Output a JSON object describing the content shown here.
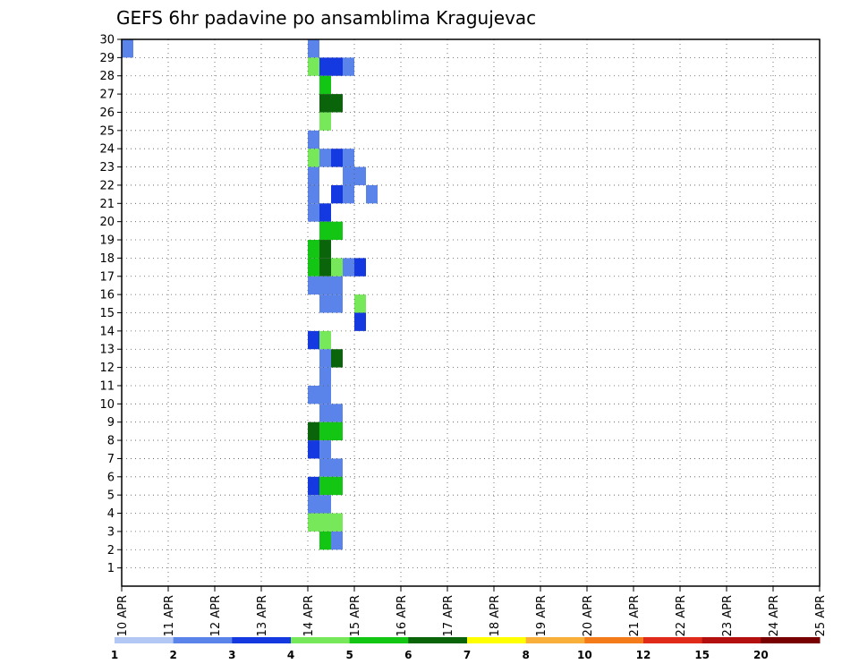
{
  "chart_data": {
    "type": "heatmap",
    "title": "GEFS 6hr padavine po ansamblima Kragujevac",
    "xlabel": "",
    "ylabel": "",
    "x_start": "10 APR",
    "x_end": "25 APR",
    "x_step_hours": 6,
    "x_ticks": [
      "10 APR",
      "11 APR",
      "12 APR",
      "13 APR",
      "14 APR",
      "15 APR",
      "16 APR",
      "17 APR",
      "18 APR",
      "19 APR",
      "20 APR",
      "21 APR",
      "22 APR",
      "23 APR",
      "24 APR",
      "25 APR"
    ],
    "y_ticks": [
      "1",
      "2",
      "3",
      "4",
      "5",
      "6",
      "7",
      "8",
      "9",
      "10",
      "11",
      "12",
      "13",
      "14",
      "15",
      "16",
      "17",
      "18",
      "19",
      "20",
      "21",
      "22",
      "23",
      "24",
      "25",
      "26",
      "27",
      "28",
      "29",
      "30"
    ],
    "ylim": [
      0,
      30
    ],
    "grid": true,
    "legend": {
      "placement": "bottom",
      "colors": [
        "#b3c7f5",
        "#5a84ea",
        "#1539e0",
        "#76e85a",
        "#13c613",
        "#0a640a",
        "#ffff00",
        "#f9b03a",
        "#f47b1a",
        "#e02a1a",
        "#b51010",
        "#780000"
      ],
      "labels": [
        "1",
        "2",
        "3",
        "4",
        "5",
        "6",
        "7",
        "8",
        "10",
        "12",
        "15",
        "20"
      ]
    },
    "cells": [
      [
        "10 APR 00Z",
        30,
        1
      ],
      [
        "14 APR 00Z",
        30,
        1
      ],
      [
        "14 APR 00Z",
        29,
        3
      ],
      [
        "14 APR 06Z",
        29,
        2
      ],
      [
        "14 APR 12Z",
        29,
        2
      ],
      [
        "14 APR 18Z",
        29,
        1
      ],
      [
        "14 APR 06Z",
        28,
        4
      ],
      [
        "14 APR 06Z",
        27,
        5
      ],
      [
        "14 APR 12Z",
        27,
        5
      ],
      [
        "14 APR 06Z",
        26,
        3
      ],
      [
        "14 APR 00Z",
        25,
        1
      ],
      [
        "14 APR 00Z",
        24,
        3
      ],
      [
        "14 APR 06Z",
        24,
        1
      ],
      [
        "14 APR 12Z",
        24,
        2
      ],
      [
        "14 APR 18Z",
        24,
        1
      ],
      [
        "14 APR 00Z",
        23,
        1
      ],
      [
        "14 APR 18Z",
        23,
        1
      ],
      [
        "15 APR 00Z",
        23,
        1
      ],
      [
        "14 APR 12Z",
        22,
        2
      ],
      [
        "14 APR 18Z",
        22,
        1
      ],
      [
        "14 APR 00Z",
        22,
        1
      ],
      [
        "15 APR 06Z",
        22,
        1
      ],
      [
        "14 APR 00Z",
        21,
        1
      ],
      [
        "14 APR 06Z",
        21,
        2
      ],
      [
        "14 APR 06Z",
        20,
        4
      ],
      [
        "14 APR 12Z",
        20,
        4
      ],
      [
        "14 APR 00Z",
        19,
        4
      ],
      [
        "14 APR 06Z",
        19,
        5
      ],
      [
        "14 APR 00Z",
        18,
        4
      ],
      [
        "14 APR 06Z",
        18,
        5
      ],
      [
        "14 APR 12Z",
        18,
        3
      ],
      [
        "14 APR 18Z",
        18,
        1
      ],
      [
        "15 APR 00Z",
        18,
        2
      ],
      [
        "14 APR 00Z",
        17,
        1
      ],
      [
        "14 APR 06Z",
        17,
        1
      ],
      [
        "14 APR 12Z",
        17,
        1
      ],
      [
        "14 APR 06Z",
        16,
        1
      ],
      [
        "14 APR 12Z",
        16,
        1
      ],
      [
        "15 APR 00Z",
        16,
        3
      ],
      [
        "15 APR 00Z",
        15,
        2
      ],
      [
        "14 APR 00Z",
        14,
        2
      ],
      [
        "14 APR 06Z",
        14,
        3
      ],
      [
        "14 APR 06Z",
        13,
        1
      ],
      [
        "14 APR 12Z",
        13,
        5
      ],
      [
        "14 APR 06Z",
        12,
        1
      ],
      [
        "14 APR 00Z",
        11,
        1
      ],
      [
        "14 APR 06Z",
        11,
        1
      ],
      [
        "14 APR 06Z",
        10,
        1
      ],
      [
        "14 APR 12Z",
        10,
        1
      ],
      [
        "14 APR 00Z",
        9,
        5
      ],
      [
        "14 APR 06Z",
        9,
        4
      ],
      [
        "14 APR 12Z",
        9,
        4
      ],
      [
        "14 APR 00Z",
        8,
        2
      ],
      [
        "14 APR 06Z",
        8,
        1
      ],
      [
        "14 APR 06Z",
        7,
        1
      ],
      [
        "14 APR 12Z",
        7,
        1
      ],
      [
        "14 APR 00Z",
        6,
        2
      ],
      [
        "14 APR 06Z",
        6,
        4
      ],
      [
        "14 APR 12Z",
        6,
        4
      ],
      [
        "14 APR 00Z",
        5,
        1
      ],
      [
        "14 APR 06Z",
        5,
        1
      ],
      [
        "14 APR 00Z",
        4,
        3
      ],
      [
        "14 APR 06Z",
        4,
        3
      ],
      [
        "14 APR 12Z",
        4,
        3
      ],
      [
        "14 APR 06Z",
        3,
        4
      ],
      [
        "14 APR 12Z",
        3,
        1
      ]
    ]
  }
}
